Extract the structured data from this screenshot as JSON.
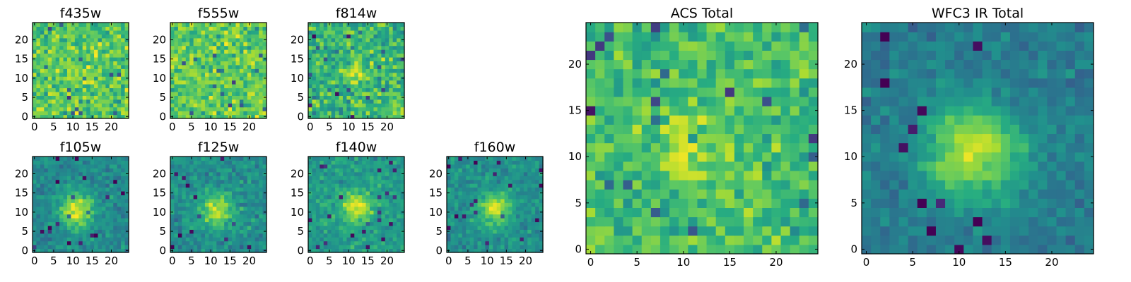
{
  "chart_data": [
    {
      "type": "heatmap",
      "title": "f435w",
      "grid_size": 25,
      "xlim": [
        0,
        24
      ],
      "ylim": [
        0,
        24
      ],
      "xticks": [
        "0",
        "5",
        "10",
        "15",
        "20"
      ],
      "yticks": [
        "0",
        "5",
        "10",
        "15",
        "20"
      ],
      "colormap": "viridis",
      "signal": {
        "center": [
          10.5,
          11
        ],
        "sigma": 2.6,
        "peak": 0.1,
        "background": 0.74,
        "noise": 0.2
      }
    },
    {
      "type": "heatmap",
      "title": "f555w",
      "grid_size": 25,
      "xlim": [
        0,
        24
      ],
      "ylim": [
        0,
        24
      ],
      "xticks": [
        "0",
        "5",
        "10",
        "15",
        "20"
      ],
      "yticks": [
        "0",
        "5",
        "10",
        "15",
        "20"
      ],
      "colormap": "viridis",
      "signal": {
        "center": [
          12,
          11
        ],
        "sigma": 2.6,
        "peak": 0.05,
        "background": 0.76,
        "noise": 0.2
      }
    },
    {
      "type": "heatmap",
      "title": "f814w",
      "grid_size": 25,
      "xlim": [
        0,
        24
      ],
      "ylim": [
        0,
        24
      ],
      "xticks": [
        "0",
        "5",
        "10",
        "15",
        "20"
      ],
      "yticks": [
        "0",
        "5",
        "10",
        "15",
        "20"
      ],
      "colormap": "viridis",
      "signal": {
        "center": [
          12,
          11
        ],
        "sigma": 2.4,
        "peak": 0.25,
        "background": 0.66,
        "noise": 0.22
      }
    },
    {
      "type": "heatmap",
      "title": "f105w",
      "grid_size": 25,
      "xlim": [
        0,
        24
      ],
      "ylim": [
        0,
        24
      ],
      "xticks": [
        "0",
        "5",
        "10",
        "15",
        "20"
      ],
      "yticks": [
        "0",
        "5",
        "10",
        "15",
        "20"
      ],
      "colormap": "viridis",
      "signal": {
        "center": [
          11,
          10.5
        ],
        "sigma": 3.2,
        "peak": 0.45,
        "background": 0.48,
        "noise": 0.12
      }
    },
    {
      "type": "heatmap",
      "title": "f125w",
      "grid_size": 25,
      "xlim": [
        0,
        24
      ],
      "ylim": [
        0,
        24
      ],
      "xticks": [
        "0",
        "5",
        "10",
        "15",
        "20"
      ],
      "yticks": [
        "0",
        "5",
        "10",
        "15",
        "20"
      ],
      "colormap": "viridis",
      "signal": {
        "center": [
          11.5,
          10.5
        ],
        "sigma": 3.0,
        "peak": 0.4,
        "background": 0.5,
        "noise": 0.14
      }
    },
    {
      "type": "heatmap",
      "title": "f140w",
      "grid_size": 25,
      "xlim": [
        0,
        24
      ],
      "ylim": [
        0,
        24
      ],
      "xticks": [
        "0",
        "5",
        "10",
        "15",
        "20"
      ],
      "yticks": [
        "0",
        "5",
        "10",
        "15",
        "20"
      ],
      "colormap": "viridis",
      "signal": {
        "center": [
          12,
          11
        ],
        "sigma": 3.0,
        "peak": 0.38,
        "background": 0.55,
        "noise": 0.13
      }
    },
    {
      "type": "heatmap",
      "title": "f160w",
      "grid_size": 25,
      "xlim": [
        0,
        24
      ],
      "ylim": [
        0,
        24
      ],
      "xticks": [
        "0",
        "5",
        "10",
        "15",
        "20"
      ],
      "yticks": [
        "0",
        "5",
        "10",
        "15",
        "20"
      ],
      "colormap": "viridis",
      "signal": {
        "center": [
          12,
          11
        ],
        "sigma": 3.0,
        "peak": 0.42,
        "background": 0.5,
        "noise": 0.12
      }
    },
    {
      "type": "heatmap",
      "title": "ACS Total",
      "grid_size": 25,
      "xlim": [
        0,
        24
      ],
      "ylim": [
        0,
        24
      ],
      "xticks": [
        "0",
        "5",
        "10",
        "15",
        "20"
      ],
      "yticks": [
        "0",
        "5",
        "10",
        "15",
        "20"
      ],
      "colormap": "viridis",
      "signal": {
        "center": [
          10.5,
          10.5
        ],
        "sigma": 2.4,
        "peak": 0.22,
        "background": 0.7,
        "noise": 0.18
      }
    },
    {
      "type": "heatmap",
      "title": "WFC3 IR Total",
      "grid_size": 25,
      "xlim": [
        0,
        24
      ],
      "ylim": [
        0,
        24
      ],
      "xticks": [
        "0",
        "5",
        "10",
        "15",
        "20"
      ],
      "yticks": [
        "0",
        "5",
        "10",
        "15",
        "20"
      ],
      "colormap": "viridis",
      "signal": {
        "center": [
          11.5,
          10.5
        ],
        "sigma": 3.6,
        "peak": 0.5,
        "background": 0.42,
        "noise": 0.1
      }
    }
  ]
}
